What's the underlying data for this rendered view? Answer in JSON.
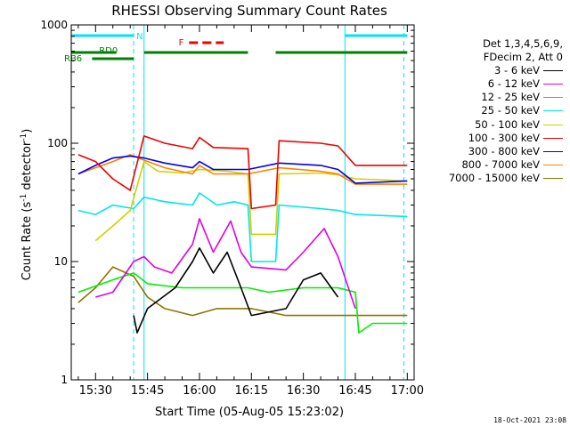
{
  "chart_data": {
    "type": "line",
    "title": "RHESSI Observing Summary Count Rates",
    "xlabel": "Start Time (05-Aug-05 15:23:02)",
    "ylabel": "Count Rate (s-1 detector-1)",
    "ylabel_parts": {
      "pre": "Count Rate (s",
      "sup1": "-1",
      "mid": " detector",
      "sup2": "-1",
      "post": ")"
    },
    "y_scale": "log",
    "ylim": [
      1,
      1000
    ],
    "xlim_minutes": [
      15.383,
      17.033
    ],
    "x_tick_labels": [
      "15:30",
      "15:45",
      "16:00",
      "16:15",
      "16:30",
      "16:45",
      "17:00"
    ],
    "y_tick_labels": [
      "1",
      "10",
      "100",
      "1000"
    ],
    "legend_header": [
      "Det 1,3,4,5,6,9,",
      "FDecim 2, Att 0"
    ],
    "legend_position": "right",
    "timestamp": "18-Oct-2021 23:08",
    "flag_labels": {
      "night": "N",
      "saa_rd0": "RD0",
      "saa_rb6": "RB6",
      "flare": "F"
    },
    "colors": {
      "night": "#00e5ee",
      "saa": "#008000",
      "flare": "#ee0000",
      "axes": "#000000"
    },
    "series": [
      {
        "name": "3 - 6 keV",
        "color": "#000000",
        "points": [
          [
            "15:41",
            3.5
          ],
          [
            "15:42",
            2.5
          ],
          [
            "15:45",
            4
          ],
          [
            "15:53",
            6
          ],
          [
            "15:58",
            10
          ],
          [
            "16:00",
            13
          ],
          [
            "16:04",
            8
          ],
          [
            "16:08",
            12
          ],
          [
            "16:12",
            6
          ],
          [
            "16:15",
            3.5
          ],
          [
            "16:25",
            4
          ],
          [
            "16:30",
            7
          ],
          [
            "16:35",
            8
          ],
          [
            "16:40",
            5
          ]
        ]
      },
      {
        "name": "6 - 12 keV",
        "color": "#e000e0",
        "points": [
          [
            "15:30",
            5
          ],
          [
            "15:35",
            5.5
          ],
          [
            "15:41",
            10
          ],
          [
            "15:44",
            11
          ],
          [
            "15:47",
            9
          ],
          [
            "15:52",
            8
          ],
          [
            "15:58",
            14
          ],
          [
            "16:00",
            23
          ],
          [
            "16:04",
            12
          ],
          [
            "16:09",
            22
          ],
          [
            "16:12",
            12
          ],
          [
            "16:15",
            9
          ],
          [
            "16:25",
            8.5
          ],
          [
            "16:30",
            12
          ],
          [
            "16:36",
            19
          ],
          [
            "16:40",
            11
          ],
          [
            "16:45",
            4
          ]
        ]
      },
      {
        "name": "12 - 25 keV",
        "color": "#00ee00",
        "points": [
          [
            "15:25",
            5.5
          ],
          [
            "15:35",
            7
          ],
          [
            "15:41",
            8
          ],
          [
            "15:45",
            6.5
          ],
          [
            "15:55",
            6
          ],
          [
            "16:05",
            6
          ],
          [
            "16:14",
            6
          ],
          [
            "16:20",
            5.5
          ],
          [
            "16:30",
            6
          ],
          [
            "16:40",
            6
          ],
          [
            "16:45",
            5.5
          ],
          [
            "16:46",
            2.5
          ],
          [
            "16:50",
            3
          ],
          [
            "17:00",
            3
          ]
        ]
      },
      {
        "name": "25 - 50 keV",
        "color": "#00e5ee",
        "points": [
          [
            "15:25",
            27
          ],
          [
            "15:30",
            25
          ],
          [
            "15:35",
            30
          ],
          [
            "15:41",
            28
          ],
          [
            "15:44",
            35
          ],
          [
            "15:50",
            32
          ],
          [
            "15:58",
            30
          ],
          [
            "16:00",
            38
          ],
          [
            "16:05",
            30
          ],
          [
            "16:10",
            32
          ],
          [
            "16:14",
            30
          ],
          [
            "16:15",
            10
          ],
          [
            "16:22",
            10
          ],
          [
            "16:23",
            30
          ],
          [
            "16:35",
            28
          ],
          [
            "16:40",
            27
          ],
          [
            "16:45",
            25
          ],
          [
            "17:00",
            24
          ]
        ]
      },
      {
        "name": "50 - 100 keV",
        "color": "#d0d000",
        "points": [
          [
            "15:30",
            15
          ],
          [
            "15:35",
            20
          ],
          [
            "15:40",
            27
          ],
          [
            "15:44",
            70
          ],
          [
            "15:48",
            58
          ],
          [
            "15:55",
            56
          ],
          [
            "16:00",
            60
          ],
          [
            "16:08",
            58
          ],
          [
            "16:14",
            55
          ],
          [
            "16:15",
            17
          ],
          [
            "16:22",
            17
          ],
          [
            "16:23",
            55
          ],
          [
            "16:35",
            56
          ],
          [
            "16:40",
            54
          ],
          [
            "16:45",
            50
          ],
          [
            "17:00",
            48
          ]
        ]
      },
      {
        "name": "100 - 300 keV",
        "color": "#ee0000",
        "points": [
          [
            "15:25",
            80
          ],
          [
            "15:30",
            70
          ],
          [
            "15:35",
            50
          ],
          [
            "15:40",
            40
          ],
          [
            "15:44",
            115
          ],
          [
            "15:50",
            100
          ],
          [
            "15:58",
            90
          ],
          [
            "16:00",
            112
          ],
          [
            "16:04",
            92
          ],
          [
            "16:14",
            90
          ],
          [
            "16:15",
            28
          ],
          [
            "16:22",
            30
          ],
          [
            "16:23",
            105
          ],
          [
            "16:35",
            100
          ],
          [
            "16:40",
            95
          ],
          [
            "16:45",
            65
          ],
          [
            "17:00",
            65
          ]
        ]
      },
      {
        "name": "300 - 800 keV",
        "color": "#0000ee",
        "points": [
          [
            "15:25",
            55
          ],
          [
            "15:30",
            65
          ],
          [
            "15:35",
            75
          ],
          [
            "15:40",
            78
          ],
          [
            "15:44",
            75
          ],
          [
            "15:50",
            68
          ],
          [
            "15:58",
            62
          ],
          [
            "16:00",
            70
          ],
          [
            "16:04",
            60
          ],
          [
            "16:14",
            60
          ],
          [
            "16:23",
            68
          ],
          [
            "16:35",
            65
          ],
          [
            "16:40",
            60
          ],
          [
            "16:45",
            46
          ],
          [
            "17:00",
            48
          ]
        ]
      },
      {
        "name": "800 - 7000 keV",
        "color": "#ff8000",
        "points": [
          [
            "15:25",
            55
          ],
          [
            "15:35",
            70
          ],
          [
            "15:40",
            80
          ],
          [
            "15:44",
            72
          ],
          [
            "15:50",
            62
          ],
          [
            "15:58",
            55
          ],
          [
            "16:00",
            65
          ],
          [
            "16:04",
            55
          ],
          [
            "16:14",
            55
          ],
          [
            "16:23",
            62
          ],
          [
            "16:35",
            58
          ],
          [
            "16:40",
            55
          ],
          [
            "16:45",
            45
          ],
          [
            "17:00",
            45
          ]
        ]
      },
      {
        "name": "7000 - 15000 keV",
        "color": "#8b7500",
        "points": [
          [
            "15:25",
            4.5
          ],
          [
            "15:30",
            6
          ],
          [
            "15:35",
            9
          ],
          [
            "15:41",
            7.5
          ],
          [
            "15:45",
            5
          ],
          [
            "15:50",
            4
          ],
          [
            "15:58",
            3.5
          ],
          [
            "16:05",
            4
          ],
          [
            "16:15",
            4
          ],
          [
            "16:25",
            3.5
          ],
          [
            "16:35",
            3.5
          ],
          [
            "16:45",
            3.5
          ],
          [
            "17:00",
            3.5
          ]
        ]
      }
    ],
    "flags": {
      "night": [
        [
          "15:23",
          "15:41"
        ],
        [
          "16:42",
          "17:00"
        ]
      ],
      "night_edges": [
        "15:23",
        "15:41",
        "15:44",
        "16:42",
        "16:59"
      ],
      "saa_rd0": [
        [
          "15:23",
          "15:36"
        ],
        [
          "15:44",
          "16:14"
        ],
        [
          "16:22",
          "17:00"
        ]
      ],
      "saa_rb6": [
        [
          "15:29",
          "15:41"
        ]
      ],
      "flare": [
        [
          "15:57",
          "16:07"
        ]
      ]
    }
  }
}
